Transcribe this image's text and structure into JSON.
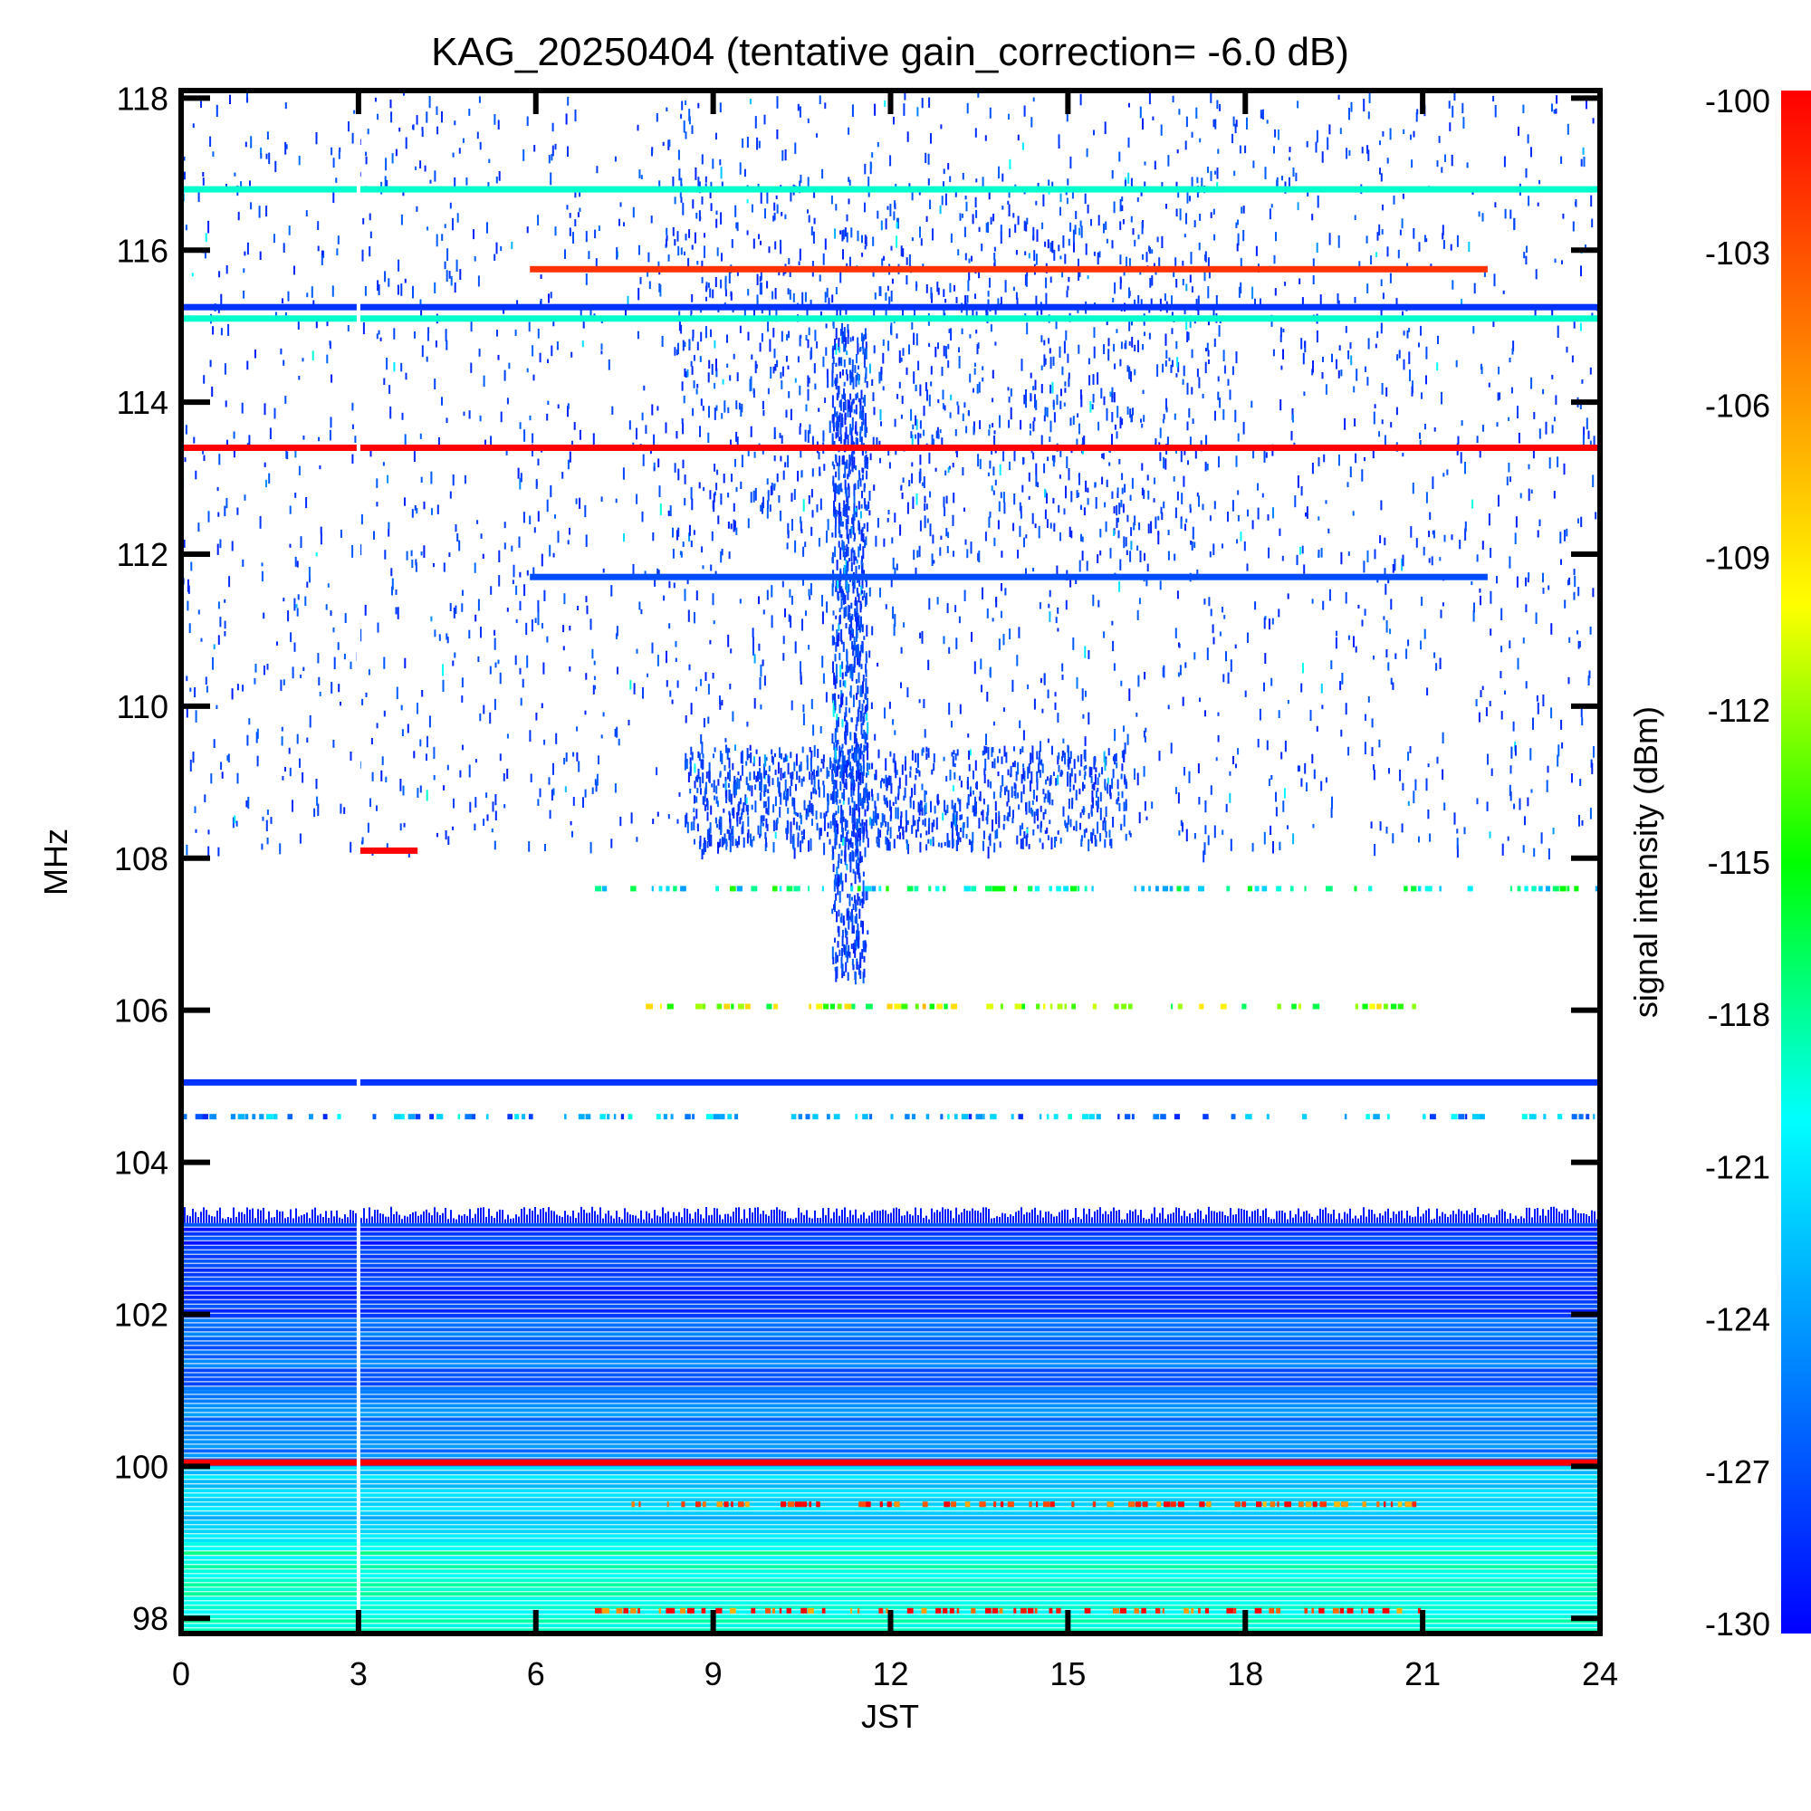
{
  "chart_data": {
    "type": "heatmap",
    "title": "KAG_20250404 (tentative gain_correction= -6.0 dB)",
    "xlabel": "JST",
    "ylabel": "MHz",
    "colorbar_label": "signal intensity (dBm)",
    "xlim": [
      0,
      24
    ],
    "ylim": [
      97.8,
      118.1
    ],
    "clim": [
      -130,
      -100
    ],
    "x_ticks": [
      "0",
      "3",
      "6",
      "9",
      "12",
      "15",
      "18",
      "21",
      "24"
    ],
    "y_ticks": [
      "98",
      "100",
      "102",
      "104",
      "106",
      "108",
      "110",
      "112",
      "114",
      "116",
      "118"
    ],
    "colorbar_ticks": [
      "-100",
      "-103",
      "-106",
      "-109",
      "-112",
      "-115",
      "-118",
      "-121",
      "-124",
      "-127",
      "-130"
    ],
    "colormap": [
      "#0000ff",
      "#0080ff",
      "#00ffff",
      "#00ff00",
      "#ffff00",
      "#ff8000",
      "#ff0000"
    ],
    "data_gap_jst": 3.0,
    "dense_bands": [
      {
        "f0": 97.8,
        "f1": 99.0,
        "dbm": -119
      },
      {
        "f0": 99.0,
        "f1": 100.0,
        "dbm": -122
      },
      {
        "f0": 100.0,
        "f1": 101.0,
        "dbm": -125
      },
      {
        "f0": 101.0,
        "f1": 102.0,
        "dbm": -126
      },
      {
        "f0": 102.0,
        "f1": 103.2,
        "dbm": -128
      }
    ],
    "strong_lines": [
      {
        "freq": 116.8,
        "t0": 0,
        "t1": 24,
        "dbm": -119
      },
      {
        "freq": 115.75,
        "t0": 5.9,
        "t1": 22.1,
        "dbm": -102
      },
      {
        "freq": 115.25,
        "t0": 0,
        "t1": 24,
        "dbm": -128
      },
      {
        "freq": 115.1,
        "t0": 0,
        "t1": 24,
        "dbm": -119
      },
      {
        "freq": 113.4,
        "t0": 0,
        "t1": 24,
        "dbm": -100
      },
      {
        "freq": 111.7,
        "t0": 5.9,
        "t1": 22.1,
        "dbm": -127
      },
      {
        "freq": 108.1,
        "t0": 3.0,
        "t1": 4.0,
        "dbm": -100
      },
      {
        "freq": 105.05,
        "t0": 0,
        "t1": 24,
        "dbm": -128
      },
      {
        "freq": 100.05,
        "t0": 0,
        "t1": 24,
        "dbm": -100
      }
    ],
    "intermittent_lines": [
      {
        "freq": 107.6,
        "t0": 7.0,
        "t1": 24,
        "dbm": -119
      },
      {
        "freq": 106.05,
        "t0": 7.5,
        "t1": 21.0,
        "dbm": -112
      },
      {
        "freq": 104.6,
        "t0": 0,
        "t1": 24,
        "dbm": -124
      },
      {
        "freq": 99.5,
        "t0": 7.5,
        "t1": 21.0,
        "dbm": -103
      },
      {
        "freq": 98.1,
        "t0": 7.0,
        "t1": 21.0,
        "dbm": -102
      }
    ],
    "sparse_region": {
      "f0": 108.1,
      "f1": 118.1,
      "dbm": -129
    },
    "activity_hotspots": [
      {
        "t0": 8.3,
        "t1": 17.5,
        "f0": 112.0,
        "f1": 117.0
      },
      {
        "t0": 11.0,
        "t1": 11.6,
        "f0": 106.5,
        "f1": 115.0
      },
      {
        "t0": 8.5,
        "t1": 16.0,
        "f0": 108.2,
        "f1": 109.5
      }
    ]
  }
}
